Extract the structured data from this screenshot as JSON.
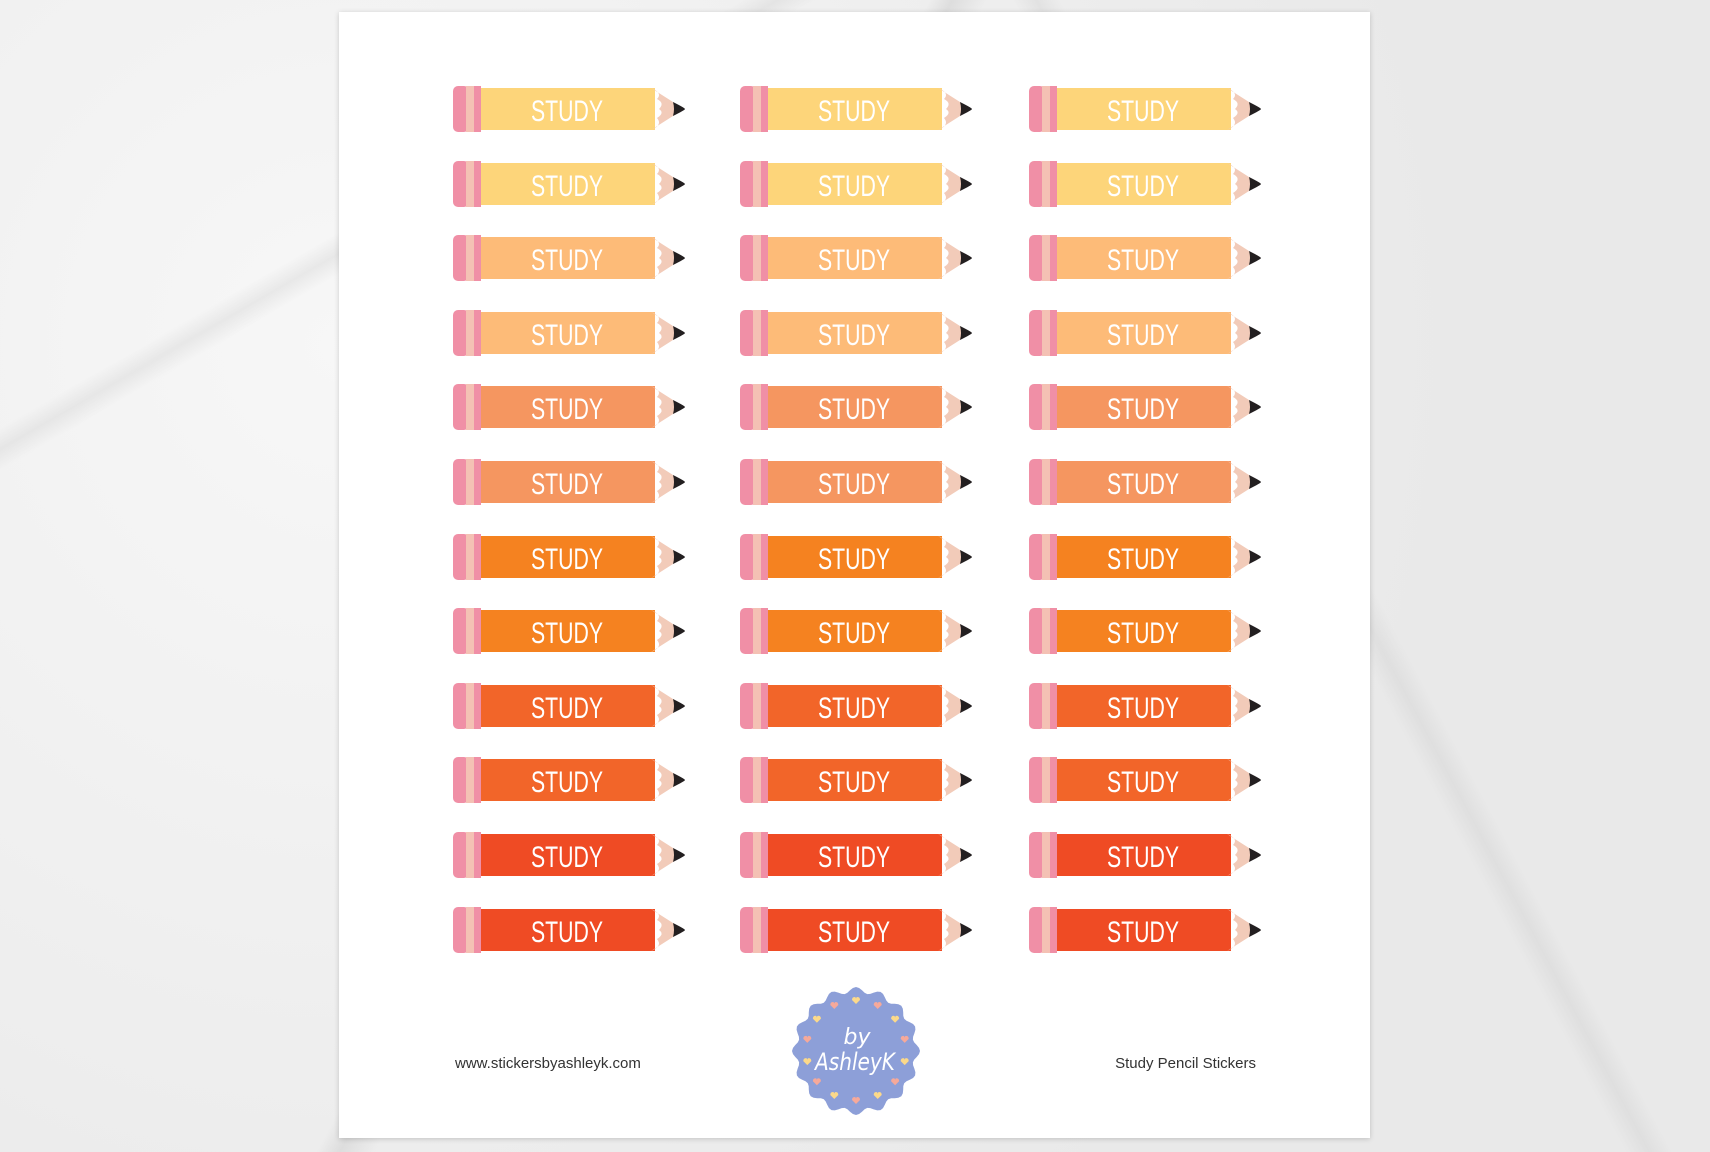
{
  "sticker_label": "STUDY",
  "columns": 3,
  "row_colors": [
    "#fdd57a",
    "#fdd57a",
    "#fdbb78",
    "#fdbb78",
    "#f59660",
    "#f59660",
    "#f58220",
    "#f58220",
    "#f26529",
    "#f26529",
    "#ef4b24",
    "#ef4b24"
  ],
  "pencil_colors": {
    "eraser": "#f08fa6",
    "band": "#f4c1b4",
    "tip": "#f2cbb9",
    "lead": "#231f20"
  },
  "footer": {
    "website": "www.stickersbyashleyk.com",
    "title": "Study Pencil Stickers"
  },
  "logo": {
    "line1": "by",
    "line2": "AshleyK",
    "color": "#8d9fd8",
    "heart_colors": [
      "#fcd98a",
      "#f6a99a"
    ]
  }
}
